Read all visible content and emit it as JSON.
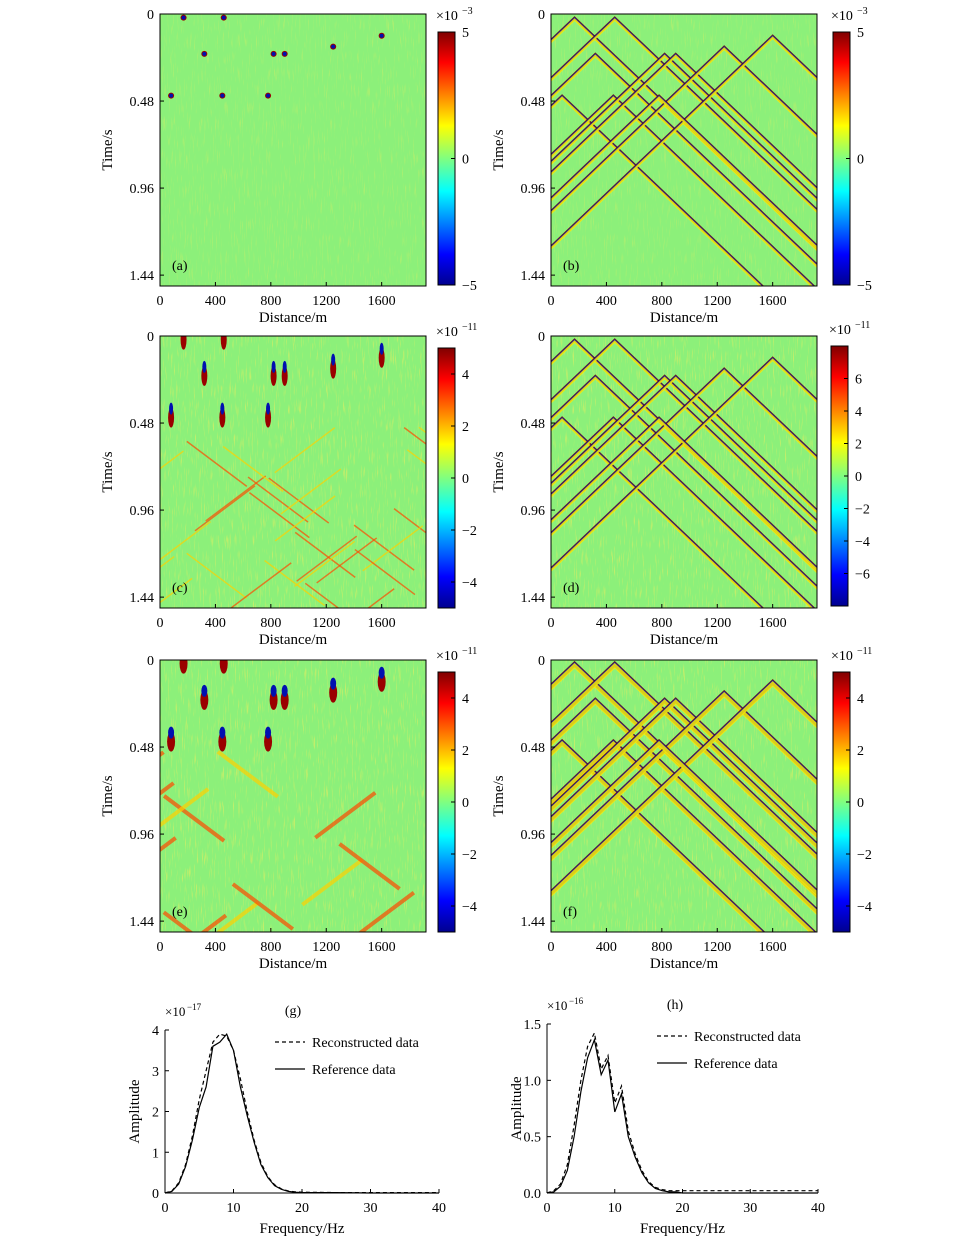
{
  "chart_data": [
    {
      "type": "heatmap",
      "panel_label": "(a)",
      "xlabel": "Distance/m",
      "ylabel": "Time/s",
      "x_ticks": [
        "0",
        "400",
        "800",
        "1200",
        "1600"
      ],
      "y_ticks": [
        "0",
        "0.48",
        "0.96",
        "1.44"
      ],
      "x_range": [
        0,
        1920
      ],
      "y_range": [
        0,
        1.5
      ],
      "colorbar": {
        "multiplier": "×10",
        "exponent": "−3",
        "ticks": [
          "5",
          "0",
          "−5"
        ],
        "range": [
          -5,
          5
        ]
      },
      "dominant_events": [
        "isolated point diffractions, near-zero background"
      ]
    },
    {
      "type": "heatmap",
      "panel_label": "(b)",
      "xlabel": "Distance/m",
      "ylabel": "Time/s",
      "x_ticks": [
        "0",
        "400",
        "800",
        "1200",
        "1600"
      ],
      "y_ticks": [
        "0",
        "0.48",
        "0.96",
        "1.44"
      ],
      "x_range": [
        0,
        1920
      ],
      "y_range": [
        0,
        1.5
      ],
      "colorbar": {
        "multiplier": "×10",
        "exponent": "−3",
        "ticks": [
          "5",
          "0",
          "−5"
        ],
        "range": [
          -5,
          5
        ]
      },
      "dominant_events": [
        "crossing linear diffraction wavefronts (V shapes)"
      ]
    },
    {
      "type": "heatmap",
      "panel_label": "(c)",
      "xlabel": "Distance/m",
      "ylabel": "Time/s",
      "x_ticks": [
        "0",
        "400",
        "800",
        "1200",
        "1600"
      ],
      "y_ticks": [
        "0",
        "0.48",
        "0.96",
        "1.44"
      ],
      "x_range": [
        0,
        1920
      ],
      "y_range": [
        0,
        1.5
      ],
      "colorbar": {
        "multiplier": "×10",
        "exponent": "−11",
        "ticks": [
          "4",
          "2",
          "0",
          "−2",
          "−4"
        ],
        "range": [
          -5,
          5
        ]
      }
    },
    {
      "type": "heatmap",
      "panel_label": "(d)",
      "xlabel": "Distance/m",
      "ylabel": "Time/s",
      "x_ticks": [
        "0",
        "400",
        "800",
        "1200",
        "1600"
      ],
      "y_ticks": [
        "0",
        "0.48",
        "0.96",
        "1.44"
      ],
      "x_range": [
        0,
        1920
      ],
      "y_range": [
        0,
        1.5
      ],
      "colorbar": {
        "multiplier": "×10",
        "exponent": "−11",
        "ticks": [
          "6",
          "4",
          "2",
          "0",
          "−2",
          "−4",
          "−6"
        ],
        "range": [
          -8,
          8
        ]
      }
    },
    {
      "type": "heatmap",
      "panel_label": "(e)",
      "xlabel": "Distance/m",
      "ylabel": "Time/s",
      "x_ticks": [
        "0",
        "400",
        "800",
        "1200",
        "1600"
      ],
      "y_ticks": [
        "0",
        "0.48",
        "0.96",
        "1.44"
      ],
      "x_range": [
        0,
        1920
      ],
      "y_range": [
        0,
        1.5
      ],
      "colorbar": {
        "multiplier": "×10",
        "exponent": "−11",
        "ticks": [
          "4",
          "2",
          "0",
          "−2",
          "−4"
        ],
        "range": [
          -5,
          5
        ]
      }
    },
    {
      "type": "heatmap",
      "panel_label": "(f)",
      "xlabel": "Distance/m",
      "ylabel": "Time/s",
      "x_ticks": [
        "0",
        "400",
        "800",
        "1200",
        "1600"
      ],
      "y_ticks": [
        "0",
        "0.48",
        "0.96",
        "1.44"
      ],
      "x_range": [
        0,
        1920
      ],
      "y_range": [
        0,
        1.5
      ],
      "colorbar": {
        "multiplier": "×10",
        "exponent": "−11",
        "ticks": [
          "4",
          "2",
          "0",
          "−2",
          "−4"
        ],
        "range": [
          -5,
          5
        ]
      }
    },
    {
      "type": "line",
      "panel_label": "(g)",
      "xlabel": "Frequency/Hz",
      "ylabel": "Amplitude",
      "multiplier": "×10",
      "exponent": "−17",
      "x_ticks": [
        "0",
        "10",
        "20",
        "30",
        "40"
      ],
      "y_ticks": [
        "0",
        "1",
        "2",
        "3",
        "4"
      ],
      "xlim": [
        0,
        40
      ],
      "ylim": [
        0,
        4
      ],
      "legend_position": "top-right",
      "x": [
        0,
        1,
        2,
        3,
        4,
        5,
        6,
        7,
        8,
        9,
        10,
        11,
        12,
        13,
        14,
        15,
        16,
        17,
        18,
        19,
        20,
        25,
        30,
        35,
        40
      ],
      "series": [
        {
          "name": "Reconstructed data",
          "style": "dashed",
          "values": [
            0,
            0.05,
            0.25,
            0.7,
            1.4,
            2.3,
            3.0,
            3.7,
            3.9,
            3.85,
            3.5,
            2.8,
            2.0,
            1.3,
            0.75,
            0.4,
            0.2,
            0.1,
            0.05,
            0.03,
            0.02,
            0.01,
            0.01,
            0.01,
            0.01
          ]
        },
        {
          "name": "Reference data",
          "style": "solid",
          "values": [
            0,
            0.04,
            0.22,
            0.65,
            1.3,
            2.1,
            2.6,
            3.6,
            3.7,
            3.9,
            3.5,
            2.6,
            1.9,
            1.25,
            0.7,
            0.38,
            0.18,
            0.09,
            0.04,
            0.02,
            0.01,
            0.01,
            0.0,
            0.0,
            0.0
          ]
        }
      ]
    },
    {
      "type": "line",
      "panel_label": "(h)",
      "xlabel": "Frequency/Hz",
      "ylabel": "Amplitude",
      "multiplier": "×10",
      "exponent": "−16",
      "x_ticks": [
        "0",
        "10",
        "20",
        "30",
        "40"
      ],
      "y_ticks": [
        "0.0",
        "0.5",
        "1.0",
        "1.5"
      ],
      "xlim": [
        0,
        40
      ],
      "ylim": [
        0,
        1.5
      ],
      "legend_position": "top-right",
      "x": [
        0,
        1,
        2,
        3,
        4,
        5,
        6,
        7,
        8,
        9,
        10,
        11,
        12,
        13,
        14,
        15,
        16,
        17,
        18,
        19,
        20,
        25,
        30,
        35,
        40
      ],
      "series": [
        {
          "name": "Reconstructed data",
          "style": "dashed",
          "values": [
            0,
            0.02,
            0.08,
            0.25,
            0.6,
            1.0,
            1.3,
            1.42,
            1.1,
            1.22,
            0.8,
            0.95,
            0.55,
            0.35,
            0.2,
            0.1,
            0.05,
            0.03,
            0.02,
            0.02,
            0.02,
            0.02,
            0.02,
            0.02,
            0.02
          ]
        },
        {
          "name": "Reference data",
          "style": "solid",
          "values": [
            0,
            0.01,
            0.06,
            0.2,
            0.5,
            0.9,
            1.2,
            1.36,
            1.05,
            1.18,
            0.72,
            0.88,
            0.5,
            0.32,
            0.18,
            0.09,
            0.04,
            0.02,
            0.01,
            0.01,
            0.0,
            0.0,
            0.0,
            0.0,
            0.0
          ]
        }
      ]
    }
  ]
}
